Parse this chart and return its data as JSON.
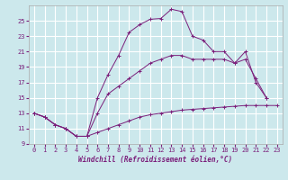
{
  "xlabel": "Windchill (Refroidissement éolien,°C)",
  "xlim": [
    -0.5,
    23.5
  ],
  "ylim": [
    9,
    27
  ],
  "xticks": [
    0,
    1,
    2,
    3,
    4,
    5,
    6,
    7,
    8,
    9,
    10,
    11,
    12,
    13,
    14,
    15,
    16,
    17,
    18,
    19,
    20,
    21,
    22,
    23
  ],
  "yticks": [
    9,
    11,
    13,
    15,
    17,
    19,
    21,
    23,
    25
  ],
  "background_color": "#cce8ec",
  "grid_color": "#ffffff",
  "line_color": "#7b1f7b",
  "line_top": {
    "x": [
      0,
      1,
      2,
      3,
      4,
      5,
      6,
      7,
      8,
      9,
      10,
      11,
      12,
      13,
      14,
      15,
      16,
      17,
      18,
      19,
      20,
      21,
      22
    ],
    "y": [
      13,
      12.5,
      11.5,
      11,
      10,
      10,
      15,
      18,
      20.5,
      23.5,
      24.5,
      25.2,
      25.3,
      26.5,
      26.2,
      23,
      22.5,
      21,
      21,
      19.5,
      21,
      17,
      15
    ]
  },
  "line_mid": {
    "x": [
      0,
      1,
      2,
      3,
      4,
      5,
      6,
      7,
      8,
      9,
      10,
      11,
      12,
      13,
      14,
      15,
      16,
      17,
      18,
      19,
      20,
      21,
      22
    ],
    "y": [
      13,
      12.5,
      11.5,
      11,
      10,
      10,
      13,
      15.5,
      16.5,
      17.5,
      18.5,
      19.5,
      20,
      20.5,
      20.5,
      20,
      20,
      20,
      20,
      19.5,
      20,
      17.5,
      15
    ]
  },
  "line_bot": {
    "x": [
      0,
      1,
      2,
      3,
      4,
      5,
      6,
      7,
      8,
      9,
      10,
      11,
      12,
      13,
      14,
      15,
      16,
      17,
      18,
      19,
      20,
      21,
      22,
      23
    ],
    "y": [
      13,
      12.5,
      11.5,
      11,
      10,
      10,
      10.5,
      11,
      11.5,
      12,
      12.5,
      12.8,
      13,
      13.2,
      13.4,
      13.5,
      13.6,
      13.7,
      13.8,
      13.9,
      14,
      14,
      14,
      14
    ]
  }
}
